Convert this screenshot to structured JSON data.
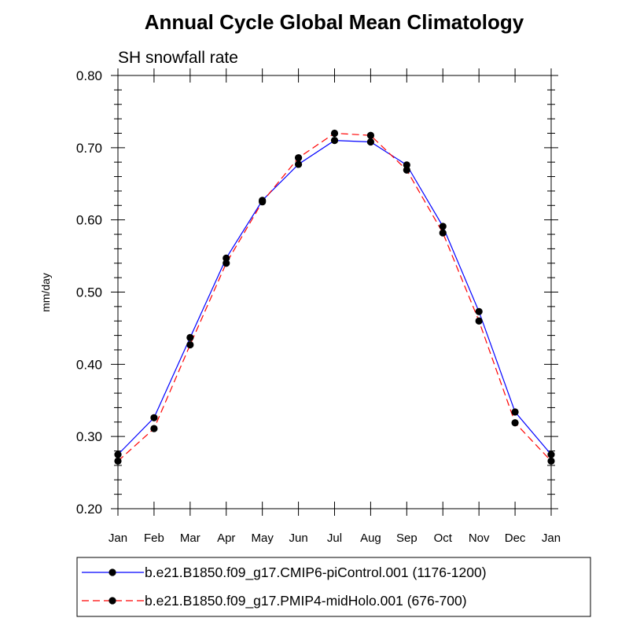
{
  "chart_data": {
    "type": "line",
    "title": "Annual Cycle Global Mean Climatology",
    "subtitle": "SH snowfall rate",
    "ylabel": "mm/day",
    "xlabel": "",
    "ylim": [
      0.2,
      0.8
    ],
    "yticks": [
      "0.20",
      "0.30",
      "0.40",
      "0.50",
      "0.60",
      "0.70",
      "0.80"
    ],
    "ytick_values": [
      0.2,
      0.3,
      0.4,
      0.5,
      0.6,
      0.7,
      0.8
    ],
    "categories": [
      "Jan",
      "Feb",
      "Mar",
      "Apr",
      "May",
      "Jun",
      "Jul",
      "Aug",
      "Sep",
      "Oct",
      "Nov",
      "Dec",
      "Jan"
    ],
    "grid": false,
    "legend_position": "bottom",
    "series": [
      {
        "name": "b.e21.B1850.f09_g17.CMIP6-piControl.001 (1176-1200)",
        "color": "#0000ff",
        "line_style": "solid",
        "marker": "filled-circle",
        "values": [
          0.275,
          0.326,
          0.437,
          0.547,
          0.627,
          0.677,
          0.71,
          0.708,
          0.676,
          0.591,
          0.473,
          0.334,
          0.275
        ]
      },
      {
        "name": "b.e21.B1850.f09_g17.PMIP4-midHolo.001 (676-700)",
        "color": "#ff0000",
        "line_style": "dashed",
        "marker": "filled-circle",
        "values": [
          0.266,
          0.311,
          0.427,
          0.54,
          0.625,
          0.686,
          0.72,
          0.717,
          0.669,
          0.582,
          0.46,
          0.319,
          0.266
        ]
      }
    ]
  }
}
